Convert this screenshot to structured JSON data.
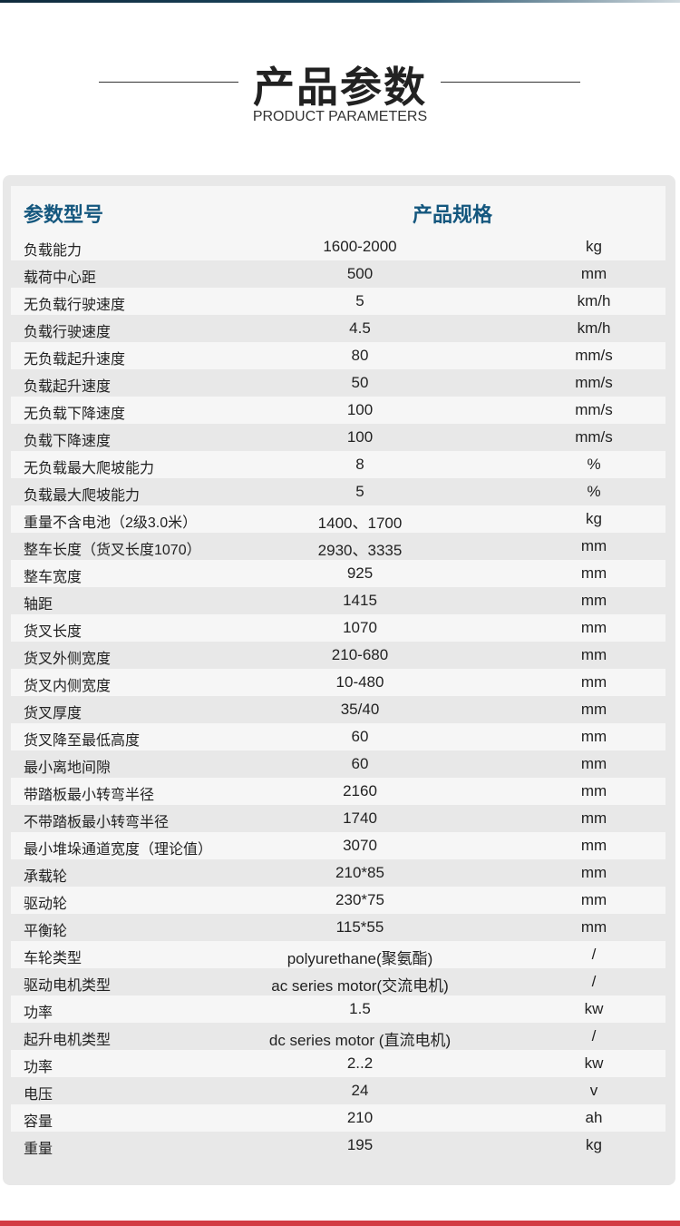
{
  "header": {
    "title": "产品参数",
    "subtitle": "PRODUCT PARAMETERS"
  },
  "table": {
    "col_param": "参数型号",
    "col_spec": "产品规格",
    "rows": [
      [
        "负载能力",
        "1600-2000",
        "kg"
      ],
      [
        "载荷中心距",
        "500",
        "mm"
      ],
      [
        "无负载行驶速度",
        "5",
        "km/h"
      ],
      [
        "负载行驶速度",
        "4.5",
        "km/h"
      ],
      [
        "无负载起升速度",
        "80",
        "mm/s"
      ],
      [
        "负载起升速度",
        "50",
        "mm/s"
      ],
      [
        "无负载下降速度",
        "100",
        "mm/s"
      ],
      [
        "负载下降速度",
        "100",
        "mm/s"
      ],
      [
        "无负载最大爬坡能力",
        "8",
        "%"
      ],
      [
        "负载最大爬坡能力",
        "5",
        "%"
      ],
      [
        "重量不含电池（2级3.0米）",
        "1400、1700",
        "kg"
      ],
      [
        "整车长度（货叉长度1070）",
        "2930、3335",
        "mm"
      ],
      [
        "整车宽度",
        "925",
        "mm"
      ],
      [
        "轴距",
        "1415",
        "mm"
      ],
      [
        "货叉长度",
        "1070",
        "mm"
      ],
      [
        "货叉外侧宽度",
        "210-680",
        "mm"
      ],
      [
        "货叉内侧宽度",
        "10-480",
        "mm"
      ],
      [
        "货叉厚度",
        "35/40",
        "mm"
      ],
      [
        "货叉降至最低高度",
        "60",
        "mm"
      ],
      [
        "最小离地间隙",
        "60",
        "mm"
      ],
      [
        "带踏板最小转弯半径",
        "2160",
        "mm"
      ],
      [
        "不带踏板最小转弯半径",
        "1740",
        "mm"
      ],
      [
        "最小堆垛通道宽度（理论值）",
        "3070",
        "mm"
      ],
      [
        "承载轮",
        "210*85",
        "mm"
      ],
      [
        "驱动轮",
        "230*75",
        "mm"
      ],
      [
        "平衡轮",
        "115*55",
        "mm"
      ],
      [
        "车轮类型",
        "polyurethane(聚氨酯)",
        "/"
      ],
      [
        "驱动电机类型",
        "ac series motor(交流电机)",
        "/"
      ],
      [
        "功率",
        "1.5",
        "kw"
      ],
      [
        "起升电机类型",
        "dc series motor (直流电机)",
        "/"
      ],
      [
        "功率",
        "2..2",
        "kw"
      ],
      [
        "电压",
        "24",
        "v"
      ],
      [
        "容量",
        "210",
        "ah"
      ],
      [
        "重量",
        "195",
        "kg"
      ]
    ]
  },
  "colors": {
    "header_text": "#14577e",
    "accent_bottom": "#d23c44"
  }
}
